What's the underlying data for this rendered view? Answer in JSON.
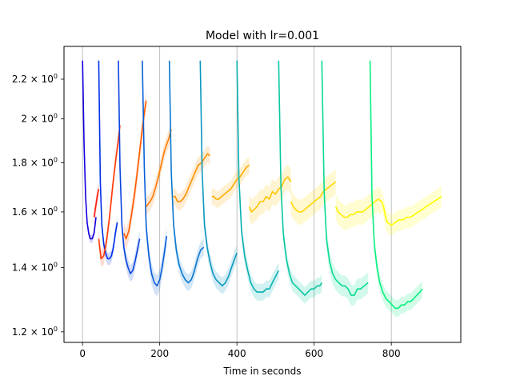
{
  "chart_data": {
    "type": "line",
    "title": "Model with lr=0.001",
    "xlabel": "Time in seconds",
    "ylabel": "",
    "xlim": [
      -48,
      980
    ],
    "ylim": [
      1.17,
      2.38
    ],
    "yscale": "log",
    "grid": "vertical lines at x ticks",
    "x_ticks": [
      0,
      200,
      400,
      600,
      800
    ],
    "x_tick_labels": [
      "0",
      "200",
      "400",
      "600",
      "800"
    ],
    "y_ticks": [
      1.2,
      1.4,
      1.6,
      1.8,
      2.0,
      2.2
    ],
    "y_tick_labels": [
      {
        "base": "1.2 × 10",
        "exp": "0"
      },
      {
        "base": "1.4 × 10",
        "exp": "0"
      },
      {
        "base": "1.6 × 10",
        "exp": "0"
      },
      {
        "base": "1.8 × 10",
        "exp": "0"
      },
      {
        "base": "2 × 10",
        "exp": "0"
      },
      {
        "base": "2.2 × 10",
        "exp": "0"
      }
    ],
    "series": [
      {
        "color": "#1400e0",
        "x": [
          0,
          4,
          8,
          12,
          16,
          20,
          25,
          30,
          35
        ],
        "y": [
          2.3,
          1.88,
          1.66,
          1.56,
          1.52,
          1.5,
          1.5,
          1.52,
          1.58
        ],
        "band": 0.01
      },
      {
        "color": "#ff1c10",
        "x": [
          30,
          34,
          38,
          42
        ],
        "y": [
          1.58,
          1.62,
          1.66,
          1.69
        ],
        "band": 0.02
      },
      {
        "color": "#0030e8",
        "x": [
          42,
          46,
          50,
          55,
          60,
          65,
          70,
          75,
          80,
          85,
          90
        ],
        "y": [
          2.3,
          1.72,
          1.55,
          1.48,
          1.45,
          1.43,
          1.43,
          1.44,
          1.47,
          1.52,
          1.56
        ],
        "band": 0.015
      },
      {
        "color": "#ff3a08",
        "x": [
          42,
          48,
          55,
          62,
          70,
          78,
          85,
          92,
          97
        ],
        "y": [
          1.5,
          1.43,
          1.44,
          1.49,
          1.58,
          1.7,
          1.8,
          1.89,
          1.97
        ],
        "band": 0.02
      },
      {
        "color": "#0a44e0",
        "x": [
          93,
          97,
          102,
          107,
          112,
          118,
          124,
          130,
          136,
          142,
          148
        ],
        "y": [
          2.3,
          1.78,
          1.55,
          1.47,
          1.43,
          1.4,
          1.38,
          1.39,
          1.42,
          1.46,
          1.5
        ],
        "band": 0.02
      },
      {
        "color": "#ff5a00",
        "x": [
          107,
          113,
          120,
          127,
          134,
          141,
          148,
          154,
          160,
          165
        ],
        "y": [
          1.52,
          1.5,
          1.53,
          1.59,
          1.66,
          1.75,
          1.85,
          1.94,
          2.03,
          2.09
        ],
        "band": 0.025
      },
      {
        "color": "#0a60d8",
        "x": [
          155,
          160,
          165,
          172,
          179,
          186,
          193,
          200,
          206,
          212,
          218
        ],
        "y": [
          2.3,
          1.78,
          1.54,
          1.44,
          1.38,
          1.35,
          1.34,
          1.36,
          1.4,
          1.45,
          1.51
        ],
        "band": 0.025
      },
      {
        "color": "#ff7a00",
        "x": [
          165,
          170,
          175,
          182,
          190,
          198,
          205,
          212,
          218,
          224,
          230
        ],
        "y": [
          1.62,
          1.63,
          1.64,
          1.66,
          1.7,
          1.75,
          1.8,
          1.85,
          1.88,
          1.91,
          1.95
        ],
        "band": 0.02
      },
      {
        "color": "#0a78d0",
        "x": [
          225,
          230,
          236,
          243,
          250,
          258,
          266,
          274,
          282,
          290,
          298,
          306,
          314
        ],
        "y": [
          2.3,
          1.76,
          1.55,
          1.46,
          1.41,
          1.38,
          1.36,
          1.35,
          1.36,
          1.39,
          1.43,
          1.46,
          1.47
        ],
        "band": 0.02
      },
      {
        "color": "#ff9200",
        "x": [
          235,
          240,
          246,
          253,
          260,
          268,
          276,
          284,
          292,
          300,
          308,
          316,
          324,
          330
        ],
        "y": [
          1.66,
          1.66,
          1.64,
          1.64,
          1.65,
          1.67,
          1.7,
          1.73,
          1.76,
          1.79,
          1.8,
          1.82,
          1.84,
          1.83
        ],
        "band": 0.02
      },
      {
        "color": "#0a98c0",
        "x": [
          305,
          310,
          316,
          323,
          330,
          338,
          346,
          354,
          362,
          370,
          378,
          386,
          394,
          400
        ],
        "y": [
          2.3,
          1.76,
          1.55,
          1.47,
          1.42,
          1.38,
          1.36,
          1.35,
          1.34,
          1.35,
          1.37,
          1.4,
          1.43,
          1.45
        ],
        "band": 0.02
      },
      {
        "color": "#ffac00",
        "x": [
          335,
          340,
          346,
          353,
          360,
          368,
          376,
          384,
          392,
          400,
          408,
          416,
          424,
          432
        ],
        "y": [
          1.66,
          1.66,
          1.65,
          1.65,
          1.66,
          1.67,
          1.68,
          1.69,
          1.71,
          1.73,
          1.74,
          1.76,
          1.78,
          1.79
        ],
        "band": 0.02
      },
      {
        "color": "#08b0b0",
        "x": [
          400,
          405,
          412,
          420,
          428,
          436,
          444,
          452,
          460,
          468,
          476,
          484,
          492,
          500,
          508
        ],
        "y": [
          2.3,
          1.74,
          1.53,
          1.44,
          1.39,
          1.35,
          1.33,
          1.32,
          1.32,
          1.32,
          1.33,
          1.33,
          1.35,
          1.37,
          1.39
        ],
        "band": 0.02
      },
      {
        "color": "#ffc400",
        "x": [
          432,
          438,
          445,
          452,
          460,
          468,
          476,
          484,
          492,
          500,
          508,
          516,
          524,
          532,
          540
        ],
        "y": [
          1.62,
          1.6,
          1.61,
          1.62,
          1.64,
          1.64,
          1.66,
          1.65,
          1.68,
          1.67,
          1.69,
          1.7,
          1.73,
          1.74,
          1.72
        ],
        "band": 0.03
      },
      {
        "color": "#08c8a0",
        "x": [
          508,
          514,
          520,
          528,
          536,
          544,
          552,
          560,
          568,
          576,
          584,
          592,
          600,
          608,
          615,
          620
        ],
        "y": [
          2.3,
          1.7,
          1.52,
          1.43,
          1.38,
          1.35,
          1.34,
          1.33,
          1.32,
          1.31,
          1.32,
          1.33,
          1.33,
          1.34,
          1.34,
          1.35
        ],
        "band": 0.02
      },
      {
        "color": "#ffd800",
        "x": [
          540,
          546,
          552,
          560,
          568,
          576,
          584,
          592,
          600,
          608,
          616,
          624,
          632,
          640,
          648,
          656
        ],
        "y": [
          1.64,
          1.62,
          1.61,
          1.6,
          1.6,
          1.61,
          1.62,
          1.63,
          1.64,
          1.65,
          1.66,
          1.68,
          1.69,
          1.7,
          1.71,
          1.72
        ],
        "band": 0.03
      },
      {
        "color": "#08dc90",
        "x": [
          620,
          626,
          632,
          640,
          648,
          656,
          664,
          672,
          680,
          688,
          696,
          704,
          712,
          720,
          730,
          740
        ],
        "y": [
          2.3,
          1.68,
          1.5,
          1.42,
          1.38,
          1.36,
          1.35,
          1.34,
          1.34,
          1.33,
          1.31,
          1.31,
          1.33,
          1.33,
          1.34,
          1.35
        ],
        "band": 0.025
      },
      {
        "color": "#ffee00",
        "x": [
          656,
          662,
          670,
          678,
          686,
          694,
          702,
          710,
          718,
          726,
          734,
          742,
          750,
          758,
          766,
          775
        ],
        "y": [
          1.62,
          1.6,
          1.59,
          1.58,
          1.58,
          1.59,
          1.59,
          1.6,
          1.6,
          1.6,
          1.61,
          1.62,
          1.63,
          1.64,
          1.65,
          1.64
        ],
        "band": 0.03
      },
      {
        "color": "#08f080",
        "x": [
          745,
          750,
          756,
          763,
          770,
          778,
          786,
          794,
          802,
          810,
          818,
          826,
          834,
          842,
          850,
          858,
          866,
          874,
          880
        ],
        "y": [
          2.3,
          1.66,
          1.48,
          1.4,
          1.35,
          1.32,
          1.3,
          1.29,
          1.28,
          1.27,
          1.27,
          1.28,
          1.28,
          1.29,
          1.29,
          1.3,
          1.31,
          1.32,
          1.33
        ],
        "band": 0.02
      },
      {
        "color": "#ffff00",
        "x": [
          775,
          780,
          785,
          790,
          800,
          810,
          820,
          830,
          840,
          850,
          860,
          870,
          880,
          890,
          900,
          910,
          920,
          930
        ],
        "y": [
          1.64,
          1.62,
          1.58,
          1.56,
          1.55,
          1.56,
          1.57,
          1.57,
          1.58,
          1.58,
          1.59,
          1.6,
          1.61,
          1.62,
          1.63,
          1.64,
          1.65,
          1.66
        ],
        "band": 0.025
      }
    ]
  }
}
